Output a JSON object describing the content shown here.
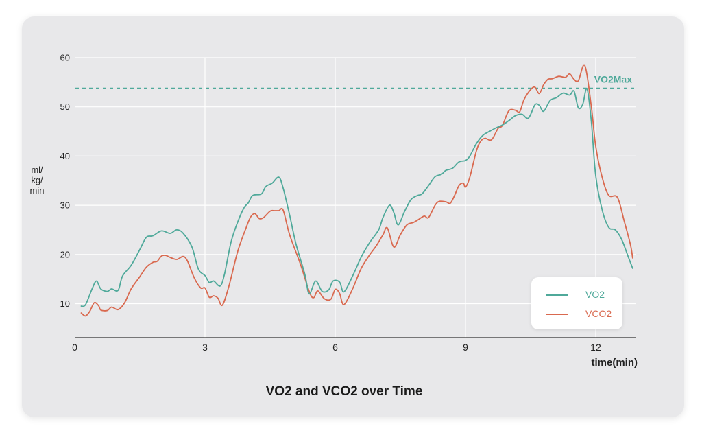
{
  "colors": {
    "vo2": "#4fa99a",
    "vco2": "#d9694f",
    "vo2max": "#4fa99a",
    "grid": "#ffffff",
    "axis": "#333333"
  },
  "chart_data": {
    "type": "line",
    "title": "VO2 and VCO2 over Time",
    "xlabel": "time(min)",
    "ylabel": [
      "ml/",
      "kg/",
      "min"
    ],
    "xlim": [
      0,
      12.9
    ],
    "ylim": [
      3,
      60
    ],
    "xticks": [
      0,
      3,
      6,
      9,
      12
    ],
    "yticks": [
      10,
      20,
      30,
      40,
      50,
      60
    ],
    "grid": true,
    "legend_position": "lower-right",
    "reference_line": {
      "label": "VO2Max",
      "y": 53.8
    },
    "series": [
      {
        "name": "VO2",
        "points": [
          [
            0.15,
            9.5
          ],
          [
            0.25,
            9.8
          ],
          [
            0.4,
            13
          ],
          [
            0.5,
            14.6
          ],
          [
            0.6,
            13
          ],
          [
            0.75,
            12.5
          ],
          [
            0.85,
            13
          ],
          [
            1.0,
            12.7
          ],
          [
            1.1,
            15.6
          ],
          [
            1.3,
            17.8
          ],
          [
            1.5,
            21
          ],
          [
            1.65,
            23.5
          ],
          [
            1.8,
            23.8
          ],
          [
            2.0,
            24.8
          ],
          [
            2.2,
            24.3
          ],
          [
            2.35,
            25.0
          ],
          [
            2.5,
            24.3
          ],
          [
            2.7,
            21.5
          ],
          [
            2.85,
            17
          ],
          [
            3.0,
            15.7
          ],
          [
            3.1,
            14.3
          ],
          [
            3.2,
            14.6
          ],
          [
            3.35,
            13.6
          ],
          [
            3.45,
            16
          ],
          [
            3.6,
            22.5
          ],
          [
            3.75,
            26.5
          ],
          [
            3.9,
            29.5
          ],
          [
            4.0,
            30.5
          ],
          [
            4.1,
            32
          ],
          [
            4.3,
            32.3
          ],
          [
            4.4,
            33.8
          ],
          [
            4.55,
            34.5
          ],
          [
            4.7,
            35.7
          ],
          [
            4.8,
            33.5
          ],
          [
            4.95,
            28
          ],
          [
            5.1,
            22
          ],
          [
            5.3,
            16
          ],
          [
            5.4,
            12
          ],
          [
            5.55,
            14.6
          ],
          [
            5.7,
            12.5
          ],
          [
            5.85,
            12.8
          ],
          [
            5.95,
            14.6
          ],
          [
            6.1,
            14.4
          ],
          [
            6.2,
            12.4
          ],
          [
            6.4,
            15.6
          ],
          [
            6.6,
            19.5
          ],
          [
            6.8,
            22.5
          ],
          [
            7.0,
            25
          ],
          [
            7.1,
            27.5
          ],
          [
            7.25,
            30
          ],
          [
            7.35,
            28.5
          ],
          [
            7.45,
            26
          ],
          [
            7.6,
            28.8
          ],
          [
            7.75,
            31.2
          ],
          [
            7.9,
            32
          ],
          [
            8.0,
            32.3
          ],
          [
            8.15,
            34
          ],
          [
            8.3,
            35.8
          ],
          [
            8.45,
            36.3
          ],
          [
            8.55,
            37.1
          ],
          [
            8.7,
            37.5
          ],
          [
            8.85,
            38.8
          ],
          [
            9.0,
            39.1
          ],
          [
            9.1,
            40
          ],
          [
            9.25,
            42.5
          ],
          [
            9.4,
            44.2
          ],
          [
            9.55,
            45
          ],
          [
            9.7,
            45.7
          ],
          [
            9.85,
            46.3
          ],
          [
            10.0,
            47.2
          ],
          [
            10.15,
            48.2
          ],
          [
            10.3,
            48.5
          ],
          [
            10.45,
            47.7
          ],
          [
            10.6,
            50.4
          ],
          [
            10.7,
            50.3
          ],
          [
            10.8,
            49.1
          ],
          [
            10.95,
            51.3
          ],
          [
            11.1,
            51.9
          ],
          [
            11.25,
            52.8
          ],
          [
            11.4,
            52.4
          ],
          [
            11.5,
            53.2
          ],
          [
            11.6,
            49.8
          ],
          [
            11.7,
            50.5
          ],
          [
            11.8,
            53.7
          ],
          [
            11.9,
            47
          ],
          [
            12.0,
            36
          ],
          [
            12.15,
            29
          ],
          [
            12.3,
            25.5
          ],
          [
            12.45,
            25
          ],
          [
            12.6,
            23
          ],
          [
            12.75,
            19.5
          ],
          [
            12.85,
            17.2
          ]
        ]
      },
      {
        "name": "VCO2",
        "points": [
          [
            0.15,
            8.1
          ],
          [
            0.25,
            7.5
          ],
          [
            0.35,
            8.5
          ],
          [
            0.45,
            10.2
          ],
          [
            0.55,
            9.6
          ],
          [
            0.6,
            8.7
          ],
          [
            0.75,
            8.6
          ],
          [
            0.85,
            9.3
          ],
          [
            1.0,
            8.8
          ],
          [
            1.15,
            10.2
          ],
          [
            1.3,
            13
          ],
          [
            1.5,
            15.5
          ],
          [
            1.65,
            17.4
          ],
          [
            1.8,
            18.4
          ],
          [
            1.9,
            18.6
          ],
          [
            2.0,
            19.7
          ],
          [
            2.1,
            19.8
          ],
          [
            2.2,
            19.4
          ],
          [
            2.35,
            19
          ],
          [
            2.5,
            19.6
          ],
          [
            2.6,
            18.6
          ],
          [
            2.75,
            15.3
          ],
          [
            2.9,
            13.2
          ],
          [
            3.0,
            13.2
          ],
          [
            3.1,
            11.3
          ],
          [
            3.2,
            11.6
          ],
          [
            3.3,
            11.1
          ],
          [
            3.4,
            9.7
          ],
          [
            3.55,
            13.5
          ],
          [
            3.75,
            20.5
          ],
          [
            3.95,
            25.5
          ],
          [
            4.05,
            27.6
          ],
          [
            4.15,
            28.3
          ],
          [
            4.25,
            27.3
          ],
          [
            4.35,
            27.5
          ],
          [
            4.5,
            28.8
          ],
          [
            4.6,
            28.9
          ],
          [
            4.7,
            28.9
          ],
          [
            4.8,
            29
          ],
          [
            4.95,
            24
          ],
          [
            5.2,
            18
          ],
          [
            5.4,
            12.5
          ],
          [
            5.5,
            11.2
          ],
          [
            5.6,
            12.6
          ],
          [
            5.75,
            11
          ],
          [
            5.9,
            10.9
          ],
          [
            6.0,
            12.9
          ],
          [
            6.1,
            12.1
          ],
          [
            6.2,
            9.8
          ],
          [
            6.4,
            13
          ],
          [
            6.6,
            17.2
          ],
          [
            6.8,
            20
          ],
          [
            6.95,
            21.8
          ],
          [
            7.1,
            24
          ],
          [
            7.2,
            25.4
          ],
          [
            7.35,
            21.5
          ],
          [
            7.5,
            24
          ],
          [
            7.65,
            26
          ],
          [
            7.8,
            26.5
          ],
          [
            7.9,
            27
          ],
          [
            8.05,
            27.8
          ],
          [
            8.15,
            27.5
          ],
          [
            8.3,
            30
          ],
          [
            8.4,
            30.8
          ],
          [
            8.55,
            30.7
          ],
          [
            8.65,
            30.4
          ],
          [
            8.75,
            32
          ],
          [
            8.85,
            34
          ],
          [
            8.95,
            34.5
          ],
          [
            9.0,
            33.7
          ],
          [
            9.1,
            35.7
          ],
          [
            9.25,
            41
          ],
          [
            9.35,
            43
          ],
          [
            9.45,
            43.6
          ],
          [
            9.6,
            43.3
          ],
          [
            9.75,
            45.6
          ],
          [
            9.85,
            46.2
          ],
          [
            10.0,
            49.2
          ],
          [
            10.15,
            49.3
          ],
          [
            10.25,
            49
          ],
          [
            10.35,
            51.5
          ],
          [
            10.5,
            53.5
          ],
          [
            10.6,
            54
          ],
          [
            10.7,
            52.7
          ],
          [
            10.8,
            54.5
          ],
          [
            10.9,
            55.6
          ],
          [
            11.0,
            55.7
          ],
          [
            11.15,
            56.2
          ],
          [
            11.3,
            56
          ],
          [
            11.4,
            56.7
          ],
          [
            11.5,
            55.6
          ],
          [
            11.6,
            55.3
          ],
          [
            11.75,
            58.4
          ],
          [
            11.9,
            50
          ],
          [
            12.0,
            42
          ],
          [
            12.15,
            35.6
          ],
          [
            12.3,
            32
          ],
          [
            12.5,
            31.6
          ],
          [
            12.65,
            27
          ],
          [
            12.8,
            22
          ],
          [
            12.85,
            19.3
          ]
        ]
      }
    ]
  }
}
